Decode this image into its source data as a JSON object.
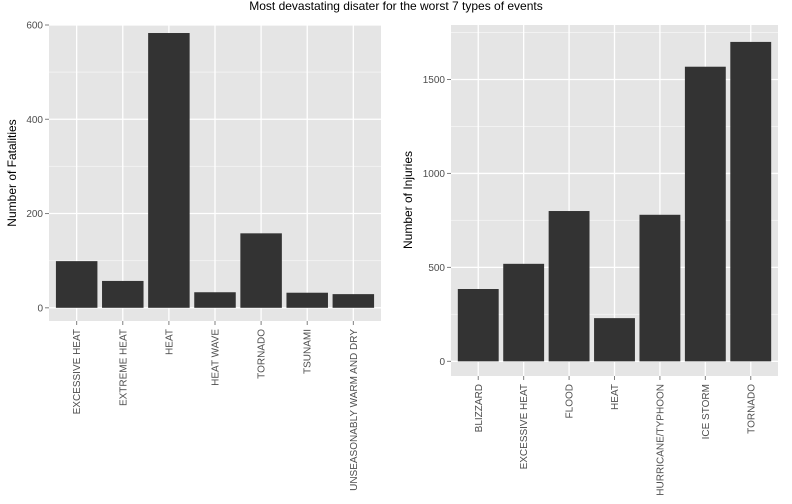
{
  "title": "Most devastating disater for the worst 7 types of events",
  "colors": {
    "panel_bg": "#e5e5e5",
    "grid_major": "#ffffff",
    "grid_minor": "#f2f2f2",
    "bar": "#333333",
    "tick_text": "#4d4d4d"
  },
  "chart_data": [
    {
      "type": "bar",
      "title": "",
      "xlabel": "",
      "ylabel": "Number of Fatalities",
      "categories": [
        "EXCESSIVE HEAT",
        "EXTREME HEAT",
        "HEAT",
        "HEAT WAVE",
        "TORNADO",
        "TSUNAMI",
        "UNSEASONABLY WARM AND DRY"
      ],
      "values": [
        99,
        57,
        583,
        33,
        158,
        32,
        29
      ],
      "ylim": [
        -28,
        600
      ],
      "yticks": [
        0,
        200,
        400,
        600
      ],
      "grid": true,
      "legend": "none"
    },
    {
      "type": "bar",
      "title": "",
      "xlabel": "",
      "ylabel": "Number of Injuries",
      "categories": [
        "BLIZZARD",
        "EXCESSIVE HEAT",
        "FLOOD",
        "HEAT",
        "HURRICANE/TYPHOON",
        "ICE STORM",
        "TORNADO"
      ],
      "values": [
        385,
        519,
        800,
        230,
        780,
        1568,
        1700
      ],
      "ylim": [
        -78,
        1790
      ],
      "yticks": [
        0,
        500,
        1000,
        1500
      ],
      "grid": true,
      "legend": "none"
    }
  ]
}
